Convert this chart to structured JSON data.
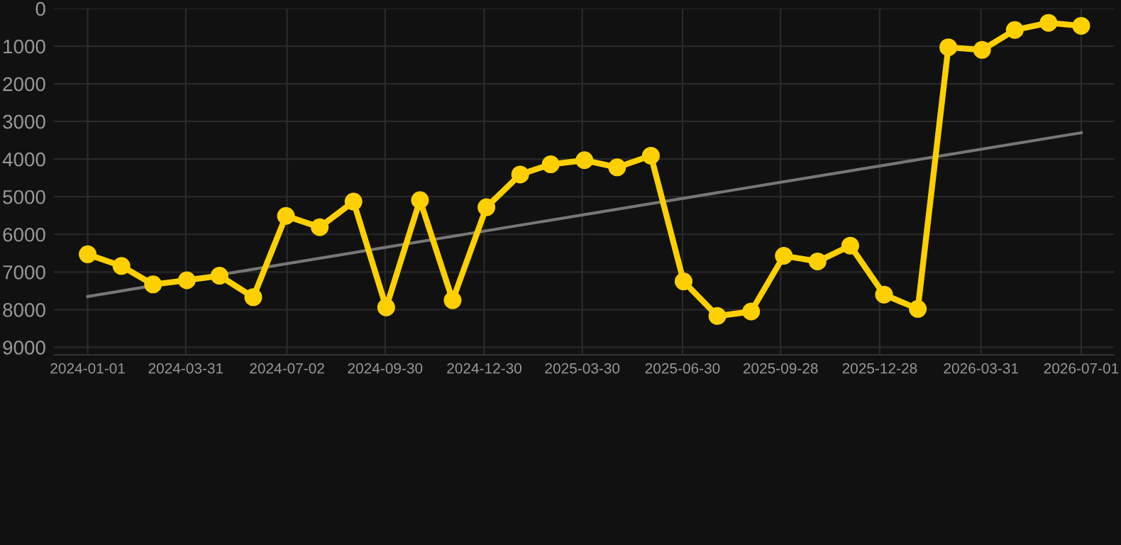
{
  "chart_data": {
    "type": "line",
    "x": [
      "2024-01-01",
      "2024-02-01",
      "2024-03-01",
      "2024-04-01",
      "2024-05-01",
      "2024-06-01",
      "2024-07-01",
      "2024-08-01",
      "2024-09-01",
      "2024-10-01",
      "2024-11-01",
      "2024-12-01",
      "2025-01-01",
      "2025-02-01",
      "2025-03-01",
      "2025-04-01",
      "2025-05-01",
      "2025-06-01",
      "2025-07-01",
      "2025-08-01",
      "2025-09-01",
      "2025-10-01",
      "2025-11-01",
      "2025-12-01",
      "2026-01-01",
      "2026-02-01",
      "2026-03-01",
      "2026-04-01",
      "2026-05-01",
      "2026-06-01",
      "2026-07-01"
    ],
    "series": [
      {
        "color": "#ffd000",
        "marker": "circle",
        "values": [
          6530,
          6840,
          7330,
          7220,
          7100,
          7670,
          5510,
          5810,
          5130,
          7940,
          5090,
          7750,
          5280,
          4410,
          4140,
          4030,
          4220,
          3910,
          7250,
          8170,
          8050,
          6570,
          6720,
          6300,
          7600,
          7980,
          1030,
          1100,
          570,
          380,
          460
        ]
      },
      {
        "type": "line",
        "color": "#777777",
        "marker": "none",
        "x": [
          "2024-01-01",
          "2026-07-01"
        ],
        "values": [
          7650,
          3300
        ]
      }
    ],
    "ylim": [
      9200,
      0
    ],
    "yticks": [
      0,
      1000,
      2000,
      3000,
      4000,
      5000,
      6000,
      7000,
      8000,
      9000
    ],
    "xlim": [
      "2023-12-01",
      "2026-07-31"
    ],
    "xticks": [
      {
        "value": "2024-01-01",
        "label": "2024-01-01"
      },
      {
        "value": "2024-03-31",
        "label": "2024-03-31"
      },
      {
        "value": "2024-07-02",
        "label": "2024-07-02"
      },
      {
        "value": "2024-09-30",
        "label": "2024-09-30"
      },
      {
        "value": "2024-12-30",
        "label": "2024-12-30"
      },
      {
        "value": "2025-03-30",
        "label": "2025-03-30"
      },
      {
        "value": "2025-06-30",
        "label": "2025-06-30"
      },
      {
        "value": "2025-09-28",
        "label": "2025-09-28"
      },
      {
        "value": "2025-12-28",
        "label": "2025-12-28"
      },
      {
        "value": "2026-03-31",
        "label": "2026-03-31"
      },
      {
        "value": "2026-07-01",
        "label": "2026-07-01"
      }
    ],
    "grid": true
  }
}
